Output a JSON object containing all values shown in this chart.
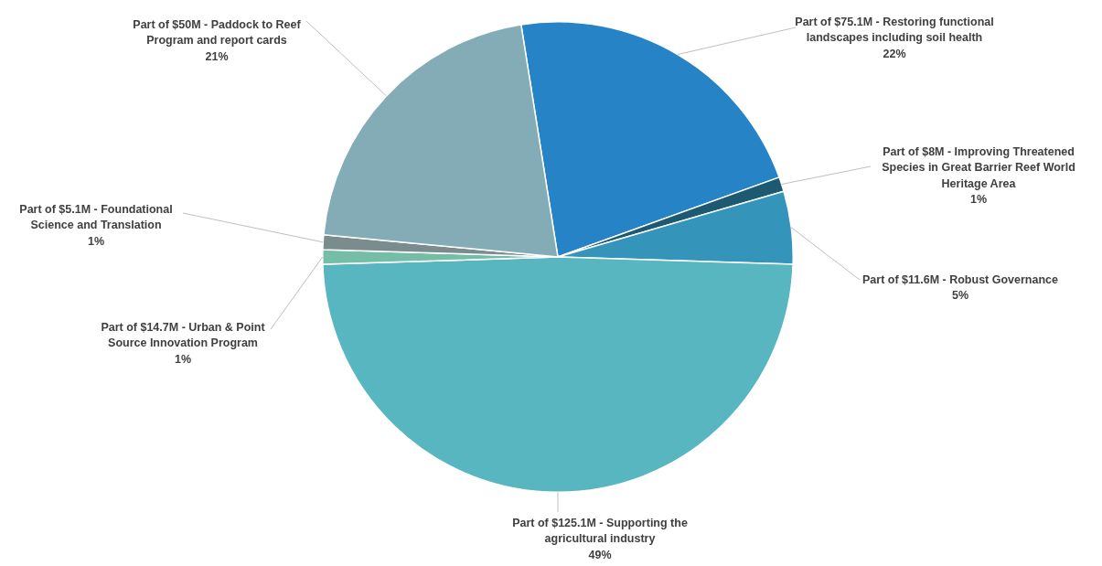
{
  "chart_data": {
    "type": "pie",
    "categories": [
      "Part of $75.1M - Restoring functional landscapes including soil health",
      "Part of $8M - Improving Threatened Species in Great Barrier Reef World Heritage Area",
      "Part of $11.6M - Robust Governance",
      "Part of $125.1M - Supporting the agricultural industry",
      "Part of $14.7M - Urban & Point Source Innovation Program",
      "Part of $5.1M - Foundational Science and Translation",
      "Part of $50M - Paddock to Reef Program and report cards"
    ],
    "values": [
      22,
      1,
      5,
      49,
      1,
      1,
      21
    ],
    "value_labels": [
      "22%",
      "1%",
      "5%",
      "49%",
      "1%",
      "1%",
      "21%"
    ],
    "colors": [
      "#2683c6",
      "#1d5a72",
      "#3494ba",
      "#58b6c0",
      "#75bda7",
      "#7a8c8e",
      "#84acb6"
    ],
    "legend": false
  }
}
